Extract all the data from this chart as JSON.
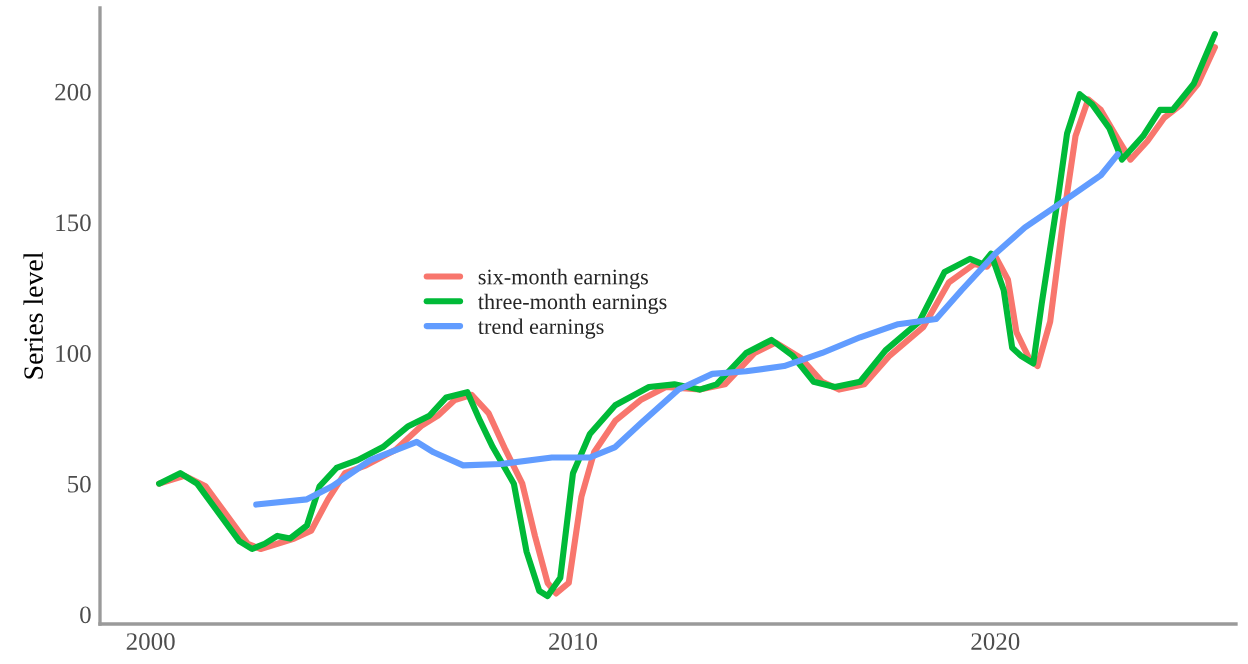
{
  "chart_data": {
    "type": "line",
    "ylabel": "Series level",
    "xlim": [
      1998.8,
      2025.7
    ],
    "ylim": [
      -3.7,
      232
    ],
    "xticks": [
      2000,
      2010,
      2020
    ],
    "yticks": [
      0,
      50,
      100,
      150,
      200
    ],
    "grid": false,
    "legend": "left",
    "marker": "none",
    "line_style": "solid",
    "series": [
      {
        "name": "six-month earnings",
        "color": "#f8766d",
        "x": [
          2000.2,
          2000.8,
          2001.3,
          2001.8,
          2002.3,
          2002.6,
          2003.0,
          2003.4,
          2003.8,
          2004.2,
          2004.6,
          2005.1,
          2005.8,
          2006.4,
          2006.8,
          2007.2,
          2007.6,
          2008.0,
          2008.4,
          2008.8,
          2009.1,
          2009.4,
          2009.6,
          2009.9,
          2010.2,
          2010.5,
          2011.0,
          2011.6,
          2012.2,
          2013.0,
          2013.6,
          2014.3,
          2014.8,
          2015.4,
          2015.9,
          2016.3,
          2016.9,
          2017.5,
          2018.3,
          2018.9,
          2019.5,
          2019.8,
          2020.0,
          2020.3,
          2020.5,
          2020.8,
          2021.0,
          2021.3,
          2021.6,
          2021.9,
          2022.2,
          2022.5,
          2022.9,
          2023.2,
          2023.6,
          2024.0,
          2024.4,
          2024.8,
          2025.2
        ],
        "values": [
          50,
          53,
          49,
          38,
          27,
          25,
          27,
          29,
          32,
          44,
          54,
          57,
          63,
          72,
          76,
          82,
          84,
          77,
          63,
          50,
          30,
          12,
          8,
          12,
          45,
          62,
          74,
          82,
          87,
          86,
          88,
          100,
          104,
          98,
          89,
          86,
          88,
          99,
          110,
          127,
          134,
          133,
          137,
          128,
          108,
          98,
          95,
          112,
          150,
          183,
          197,
          193,
          182,
          174,
          181,
          190,
          195,
          203,
          217
        ]
      },
      {
        "name": "three-month earnings",
        "color": "#00ba38",
        "x": [
          2000.2,
          2000.7,
          2001.1,
          2001.6,
          2002.1,
          2002.4,
          2002.7,
          2003.0,
          2003.3,
          2003.7,
          2004.0,
          2004.4,
          2004.9,
          2005.5,
          2006.1,
          2006.6,
          2007.0,
          2007.5,
          2007.8,
          2008.1,
          2008.6,
          2008.9,
          2009.2,
          2009.4,
          2009.7,
          2010.0,
          2010.4,
          2011.0,
          2011.8,
          2012.4,
          2013.0,
          2013.4,
          2014.1,
          2014.7,
          2015.2,
          2015.7,
          2016.2,
          2016.8,
          2017.4,
          2018.2,
          2018.8,
          2019.4,
          2019.7,
          2019.9,
          2020.2,
          2020.4,
          2020.6,
          2020.9,
          2021.1,
          2021.5,
          2021.7,
          2022.0,
          2022.3,
          2022.7,
          2023.0,
          2023.5,
          2023.9,
          2024.2,
          2024.7,
          2025.2
        ],
        "values": [
          50,
          54,
          50,
          39,
          28,
          25,
          27,
          30,
          29,
          34,
          49,
          56,
          59,
          64,
          72,
          76,
          83,
          85,
          74,
          64,
          50,
          24,
          9,
          7,
          14,
          54,
          69,
          80,
          87,
          88,
          86,
          88,
          100,
          105,
          99,
          89,
          87,
          89,
          101,
          112,
          131,
          136,
          134,
          138,
          124,
          102,
          99,
          96,
          119,
          161,
          184,
          199,
          195,
          186,
          174,
          183,
          193,
          193,
          203,
          222
        ]
      },
      {
        "name": "trend earnings",
        "color": "#619cff",
        "x": [
          2002.5,
          2003.7,
          2004.3,
          2005.2,
          2006.3,
          2006.7,
          2007.4,
          2008.3,
          2009.5,
          2010.4,
          2011.0,
          2011.6,
          2012.5,
          2013.3,
          2014.1,
          2015.0,
          2015.9,
          2016.8,
          2017.7,
          2018.6,
          2019.2,
          2020.0,
          2020.7,
          2021.7,
          2022.5,
          2022.9
        ],
        "values": [
          42,
          44,
          49,
          59,
          66,
          62,
          57,
          57.5,
          60,
          60,
          64,
          73,
          86,
          92,
          93,
          95,
          100,
          106,
          111,
          113,
          124,
          138,
          148,
          159,
          168,
          176
        ]
      }
    ]
  }
}
